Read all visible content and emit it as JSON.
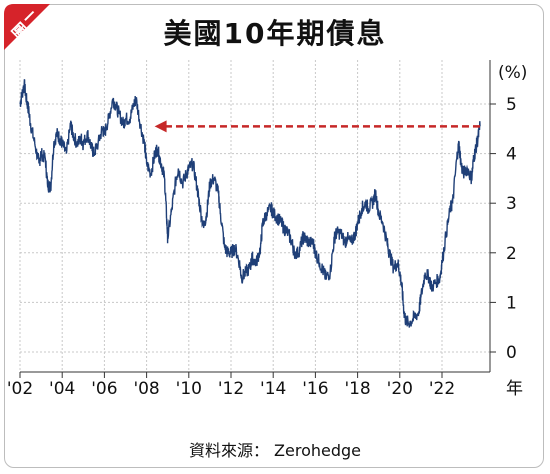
{
  "badge": {
    "label": "圖二",
    "color": "#d6232a"
  },
  "source": "資料來源： Zerohedge",
  "chart_data": {
    "type": "line",
    "title": "美國10年期債息",
    "ylabel": "(%)",
    "xlabel": "年",
    "ylim": [
      0,
      5.5
    ],
    "xlim": [
      2002,
      2024
    ],
    "yticks": [
      0,
      1,
      2,
      3,
      4,
      5
    ],
    "xticks": [
      "'02",
      "'04",
      "'06",
      "'08",
      "'10",
      "'12",
      "'14",
      "'16",
      "'18",
      "'20",
      "'22"
    ],
    "grid": true,
    "line_color": "#1f3f77",
    "arrow_color": "#c62828",
    "annotation": {
      "type": "dashed-arrow",
      "from": [
        2023.8,
        4.55
      ],
      "to": [
        2008.0,
        4.55
      ]
    },
    "series": [
      {
        "x": [
          2002.0,
          2002.1,
          2002.2,
          2002.3,
          2002.4,
          2002.5,
          2002.7,
          2002.9,
          2003.0,
          2003.2,
          2003.3,
          2003.45,
          2003.6,
          2003.75,
          2003.9,
          2004.0,
          2004.2,
          2004.4,
          2004.5,
          2004.7,
          2004.9,
          2005.0,
          2005.2,
          2005.4,
          2005.5,
          2005.7,
          2005.9,
          2006.0,
          2006.2,
          2006.4,
          2006.5,
          2006.7,
          2006.9,
          2007.0,
          2007.2,
          2007.4,
          2007.5,
          2007.7,
          2007.9,
          2008.0,
          2008.2,
          2008.4,
          2008.5,
          2008.7,
          2008.85,
          2008.95,
          2009.0,
          2009.2,
          2009.4,
          2009.5,
          2009.7,
          2009.9,
          2010.0,
          2010.2,
          2010.4,
          2010.5,
          2010.7,
          2010.85,
          2011.0,
          2011.2,
          2011.4,
          2011.5,
          2011.7,
          2011.85,
          2012.0,
          2012.2,
          2012.4,
          2012.5,
          2012.7,
          2012.9,
          2013.0,
          2013.2,
          2013.4,
          2013.5,
          2013.7,
          2013.9,
          2014.0,
          2014.2,
          2014.4,
          2014.5,
          2014.7,
          2014.9,
          2015.0,
          2015.2,
          2015.4,
          2015.5,
          2015.7,
          2015.9,
          2016.0,
          2016.2,
          2016.4,
          2016.5,
          2016.7,
          2016.9,
          2017.0,
          2017.2,
          2017.4,
          2017.5,
          2017.7,
          2017.9,
          2018.0,
          2018.2,
          2018.4,
          2018.5,
          2018.7,
          2018.85,
          2019.0,
          2019.2,
          2019.4,
          2019.5,
          2019.7,
          2019.9,
          2020.0,
          2020.1,
          2020.2,
          2020.3,
          2020.5,
          2020.7,
          2020.9,
          2021.0,
          2021.2,
          2021.4,
          2021.5,
          2021.7,
          2021.9,
          2022.0,
          2022.2,
          2022.4,
          2022.5,
          2022.7,
          2022.8,
          2022.9,
          2023.0,
          2023.2,
          2023.4,
          2023.5,
          2023.6,
          2023.7,
          2023.8
        ],
        "y": [
          5.0,
          5.2,
          5.4,
          5.1,
          4.9,
          4.6,
          4.2,
          3.8,
          4.0,
          3.9,
          3.4,
          3.3,
          4.2,
          4.4,
          4.3,
          4.2,
          4.0,
          4.6,
          4.4,
          4.2,
          4.3,
          4.2,
          4.4,
          4.1,
          4.0,
          4.2,
          4.5,
          4.4,
          4.7,
          5.1,
          5.0,
          4.8,
          4.6,
          4.7,
          4.7,
          5.0,
          5.1,
          4.6,
          4.2,
          3.8,
          3.6,
          4.0,
          4.1,
          3.8,
          3.5,
          2.7,
          2.3,
          2.9,
          3.5,
          3.7,
          3.4,
          3.6,
          3.7,
          3.8,
          3.3,
          3.0,
          2.5,
          2.8,
          3.4,
          3.5,
          3.2,
          2.8,
          2.1,
          2.0,
          2.0,
          2.1,
          1.8,
          1.5,
          1.6,
          1.7,
          1.9,
          1.8,
          2.1,
          2.6,
          2.8,
          2.9,
          2.8,
          2.7,
          2.6,
          2.5,
          2.4,
          2.2,
          2.0,
          2.0,
          2.3,
          2.3,
          2.2,
          2.2,
          2.0,
          1.8,
          1.6,
          1.5,
          1.6,
          2.3,
          2.4,
          2.4,
          2.2,
          2.3,
          2.2,
          2.4,
          2.6,
          2.9,
          3.0,
          2.9,
          3.0,
          3.2,
          2.8,
          2.6,
          2.2,
          2.0,
          1.7,
          1.8,
          1.6,
          1.3,
          0.8,
          0.6,
          0.6,
          0.7,
          0.8,
          1.1,
          1.6,
          1.5,
          1.3,
          1.4,
          1.5,
          1.8,
          2.4,
          2.9,
          3.0,
          3.9,
          4.2,
          3.8,
          3.6,
          3.7,
          3.5,
          3.9,
          4.1,
          4.3,
          4.55
        ]
      }
    ]
  }
}
